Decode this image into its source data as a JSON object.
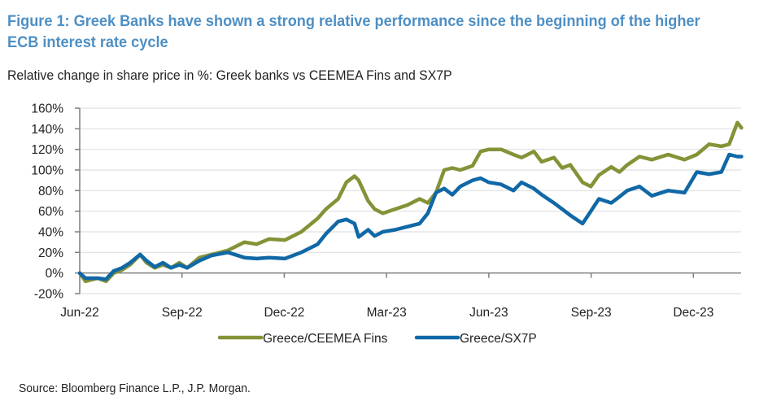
{
  "title": "Figure 1: Greek Banks have shown a strong relative performance since the beginning of the higher ECB interest rate cycle",
  "subtitle": "Relative change in share price in %: Greek banks vs CEEMEA Fins and SX7P",
  "source": "Source: Bloomberg Finance L.P., J.P. Morgan.",
  "chart_data": {
    "type": "line",
    "title": "Relative change in share price in %: Greek banks vs CEEMEA Fins and SX7P",
    "xlabel": "",
    "ylabel": "",
    "x_unit": "months since Jun-22",
    "xlim": [
      0,
      19.4
    ],
    "ylim": [
      -20,
      160
    ],
    "grid": true,
    "legend_position": "bottom",
    "x_ticks": [
      {
        "value": 0,
        "label": "Jun-22"
      },
      {
        "value": 3,
        "label": "Sep-22"
      },
      {
        "value": 6,
        "label": "Dec-22"
      },
      {
        "value": 9,
        "label": "Mar-23"
      },
      {
        "value": 12,
        "label": "Jun-23"
      },
      {
        "value": 15,
        "label": "Sep-23"
      },
      {
        "value": 18,
        "label": "Dec-23"
      }
    ],
    "y_ticks": [
      {
        "value": -20,
        "label": "-20%"
      },
      {
        "value": 0,
        "label": "0%"
      },
      {
        "value": 20,
        "label": "20%"
      },
      {
        "value": 40,
        "label": "40%"
      },
      {
        "value": 60,
        "label": "60%"
      },
      {
        "value": 80,
        "label": "80%"
      },
      {
        "value": 100,
        "label": "100%"
      },
      {
        "value": 120,
        "label": "120%"
      },
      {
        "value": 140,
        "label": "140%"
      },
      {
        "value": 160,
        "label": "160%"
      }
    ],
    "x": [
      0,
      0.17,
      0.53,
      0.77,
      1.0,
      1.24,
      1.48,
      1.77,
      1.96,
      2.2,
      2.44,
      2.68,
      2.92,
      3.15,
      3.51,
      3.87,
      4.35,
      4.83,
      5.19,
      5.55,
      6.02,
      6.5,
      6.98,
      7.22,
      7.58,
      7.82,
      8.06,
      8.18,
      8.46,
      8.65,
      8.89,
      9.25,
      9.61,
      9.97,
      10.21,
      10.45,
      10.69,
      10.93,
      11.16,
      11.52,
      11.76,
      12.0,
      12.36,
      12.72,
      12.96,
      13.32,
      13.55,
      13.91,
      14.15,
      14.39,
      14.75,
      14.99,
      15.23,
      15.59,
      15.83,
      16.06,
      16.42,
      16.78,
      17.26,
      17.74,
      18.1,
      18.46,
      18.82,
      19.05,
      19.29,
      19.41
    ],
    "series": [
      {
        "name": "Greece/CEEMEA Fins",
        "color": "#859237",
        "values": [
          0,
          -8,
          -5,
          -8,
          0,
          3,
          8,
          18,
          10,
          5,
          8,
          5,
          10,
          5,
          15,
          18,
          22,
          30,
          28,
          33,
          32,
          40,
          53,
          62,
          72,
          88,
          94,
          90,
          70,
          62,
          58,
          62,
          66,
          72,
          68,
          78,
          100,
          102,
          100,
          104,
          118,
          120,
          120,
          115,
          112,
          118,
          108,
          112,
          102,
          105,
          88,
          84,
          95,
          103,
          98,
          105,
          113,
          110,
          115,
          110,
          115,
          125,
          123,
          125,
          146,
          141
        ]
      },
      {
        "name": "Greece/SX7P",
        "color": "#1068a6",
        "values": [
          0,
          -5,
          -5,
          -6,
          2,
          5,
          10,
          18,
          12,
          6,
          10,
          5,
          8,
          5,
          12,
          17,
          20,
          15,
          14,
          15,
          14,
          20,
          28,
          38,
          50,
          52,
          48,
          35,
          42,
          36,
          40,
          42,
          45,
          48,
          58,
          78,
          82,
          76,
          84,
          90,
          92,
          88,
          86,
          80,
          88,
          82,
          76,
          68,
          62,
          56,
          48,
          60,
          72,
          68,
          74,
          80,
          84,
          75,
          80,
          78,
          98,
          96,
          98,
          115,
          113,
          113
        ]
      }
    ]
  }
}
